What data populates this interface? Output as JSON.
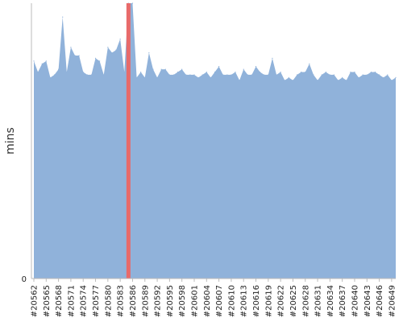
{
  "chart_data": {
    "type": "area",
    "ylabel": "mins",
    "y_ticks": [
      "0"
    ],
    "ylim": [
      0,
      100
    ],
    "x_ticks": [
      "#20562",
      "#20565",
      "#20568",
      "#20571",
      "#20574",
      "#20577",
      "#20580",
      "#20583",
      "#20586",
      "#20589",
      "#20592",
      "#20595",
      "#20598",
      "#20601",
      "#20604",
      "#20607",
      "#20610",
      "#20613",
      "#20616",
      "#20619",
      "#20622",
      "#20625",
      "#20628",
      "#20631",
      "#20634",
      "#20637",
      "#20640",
      "#20643",
      "#20646",
      "#20649"
    ],
    "x_range": [
      20562,
      20650
    ],
    "highlight_build": "#20585",
    "series": [
      {
        "x": [
          20562,
          20563,
          20564,
          20565,
          20566,
          20567,
          20568,
          20569,
          20570,
          20571,
          20572,
          20573,
          20574,
          20575,
          20576,
          20577,
          20578,
          20579,
          20580,
          20581,
          20582,
          20583,
          20584,
          20585,
          20586,
          20587,
          20588,
          20589,
          20590,
          20591,
          20592,
          20593,
          20594,
          20595,
          20596,
          20597,
          20598,
          20599,
          20600,
          20601,
          20602,
          20603,
          20604,
          20605,
          20606,
          20607,
          20608,
          20609,
          20610,
          20611,
          20612,
          20613,
          20614,
          20615,
          20616,
          20617,
          20618,
          20619,
          20620,
          20621,
          20622,
          20623,
          20624,
          20625,
          20626,
          20627,
          20628,
          20629,
          20630,
          20631,
          20632,
          20633,
          20634,
          20635,
          20636,
          20637,
          20638,
          20639,
          20640,
          20641,
          20642,
          20643,
          20644,
          20645,
          20646,
          20647,
          20648,
          20649,
          20650
        ],
        "values": [
          79,
          75,
          78,
          79,
          73,
          74,
          76,
          95,
          75,
          84,
          81,
          81,
          75,
          74,
          74,
          80,
          79,
          74,
          84,
          82,
          83,
          87,
          75,
          100,
          100,
          73,
          75,
          73,
          82,
          76,
          73,
          76,
          76,
          74,
          74,
          75,
          76,
          74,
          74,
          74,
          73,
          74,
          75,
          73,
          75,
          77,
          74,
          74,
          74,
          75,
          72,
          76,
          74,
          74,
          77,
          75,
          74,
          74,
          80,
          74,
          75,
          72,
          73,
          72,
          74,
          75,
          75,
          78,
          74,
          72,
          74,
          75,
          74,
          74,
          72,
          73,
          72,
          75,
          75,
          73,
          74,
          74,
          75,
          75,
          74,
          73,
          74,
          72,
          73
        ],
        "color": "#90b2da"
      }
    ],
    "highlight_color": "#e86a6a"
  }
}
